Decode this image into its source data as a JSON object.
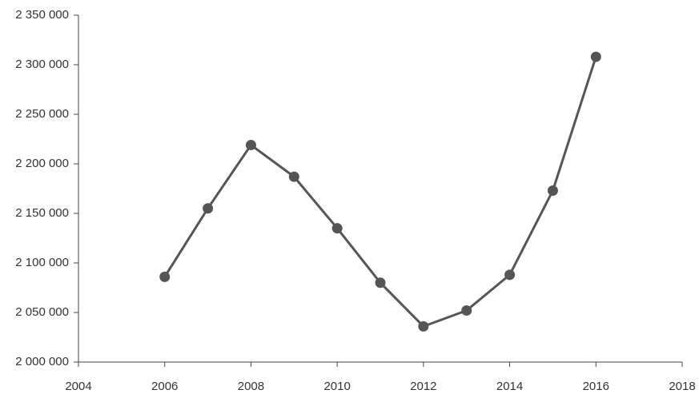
{
  "chart_data": {
    "type": "line",
    "x": [
      2006,
      2007,
      2008,
      2009,
      2010,
      2011,
      2012,
      2013,
      2014,
      2015,
      2016
    ],
    "values": [
      2086000,
      2155000,
      2219000,
      2187000,
      2135000,
      2080000,
      2036000,
      2052000,
      2088000,
      2173000,
      2308000
    ],
    "color": "#555555",
    "xlim": [
      2004,
      2018
    ],
    "xticks": [
      2004,
      2006,
      2008,
      2010,
      2012,
      2014,
      2016,
      2018
    ],
    "ylim": [
      2000000,
      2350000
    ],
    "yticks": [
      {
        "value": 2000000,
        "label": "2 000 000"
      },
      {
        "value": 2050000,
        "label": "2 050 000"
      },
      {
        "value": 2100000,
        "label": "2 100 000"
      },
      {
        "value": 2150000,
        "label": "2 150 000"
      },
      {
        "value": 2200000,
        "label": "2 200 000"
      },
      {
        "value": 2250000,
        "label": "2 250 000"
      },
      {
        "value": 2300000,
        "label": "2 300 000"
      },
      {
        "value": 2350000,
        "label": "2 350 000"
      }
    ],
    "grid": false
  }
}
